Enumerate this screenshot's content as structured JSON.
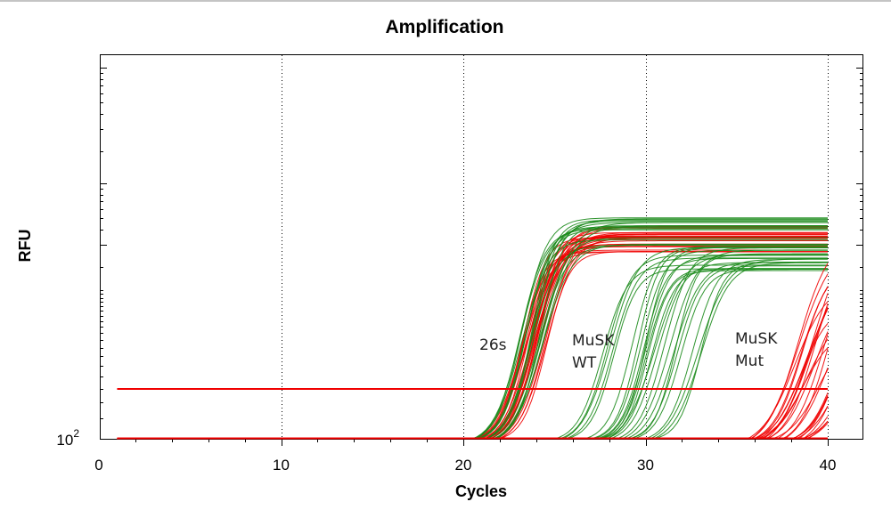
{
  "chart_data": {
    "type": "line",
    "title": "Amplification",
    "xlabel": "Cycles",
    "ylabel": "RFU",
    "xlim": [
      0,
      42
    ],
    "x_ticks": [
      "0",
      "10",
      "20",
      "30",
      "40"
    ],
    "y_scale": "log",
    "y_tick_base": "10",
    "y_tick_exponent": "2",
    "grid": "vertical dotted lines at 10, 20, 30, 40",
    "legend": "none",
    "colors": {
      "green": "#1a8a1a",
      "red": "#f00000",
      "threshold": "#f00000"
    },
    "annotations": [
      {
        "lines": [
          "26s"
        ],
        "x_cycle": 21.0
      },
      {
        "lines": [
          "MuSK",
          "WT"
        ],
        "x_cycle": 26.0
      },
      {
        "lines": [
          "MuSK",
          "Mut"
        ],
        "x_cycle": 35.0
      }
    ],
    "series": [
      {
        "group": "26s",
        "colors": [
          "red",
          "green"
        ],
        "onset_cycle_range": [
          20.5,
          22.0
        ],
        "reaches_plateau": true
      },
      {
        "group": "MuSK WT",
        "colors": [
          "green"
        ],
        "onset_cycle_range": [
          25.0,
          30.5
        ],
        "reaches_plateau": true
      },
      {
        "group": "MuSK Mut",
        "colors": [
          "red"
        ],
        "onset_cycle_range": [
          35.5,
          39.0
        ],
        "reaches_plateau": false
      }
    ],
    "threshold_line": {
      "x_from": 1,
      "x_to": 40
    },
    "baseline": {
      "x_from": 1,
      "x_to": 40
    }
  }
}
